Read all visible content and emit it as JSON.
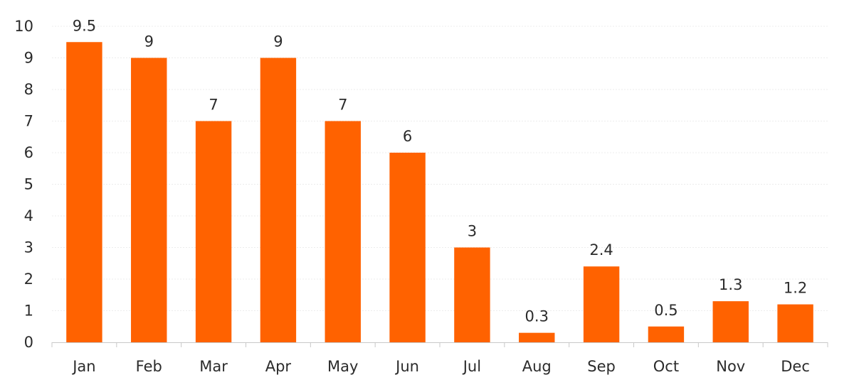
{
  "chart_data": {
    "type": "bar",
    "categories": [
      "Jan",
      "Feb",
      "Mar",
      "Apr",
      "May",
      "Jun",
      "Jul",
      "Aug",
      "Sep",
      "Oct",
      "Nov",
      "Dec"
    ],
    "values": [
      9.5,
      9,
      7,
      9,
      7,
      6,
      3,
      0.3,
      2.4,
      0.5,
      1.3,
      1.2
    ],
    "data_labels": [
      "9.5",
      "9",
      "7",
      "9",
      "7",
      "6",
      "3",
      "0.3",
      "2.4",
      "0.5",
      "1.3",
      "1.2"
    ],
    "y_ticks": [
      "0",
      "1",
      "2",
      "3",
      "4",
      "5",
      "6",
      "7",
      "8",
      "9",
      "10"
    ],
    "ylim": [
      0,
      10
    ],
    "grid": true,
    "legend": "none",
    "bar_color": "#ff6200",
    "title": "",
    "xlabel": "",
    "ylabel": ""
  }
}
